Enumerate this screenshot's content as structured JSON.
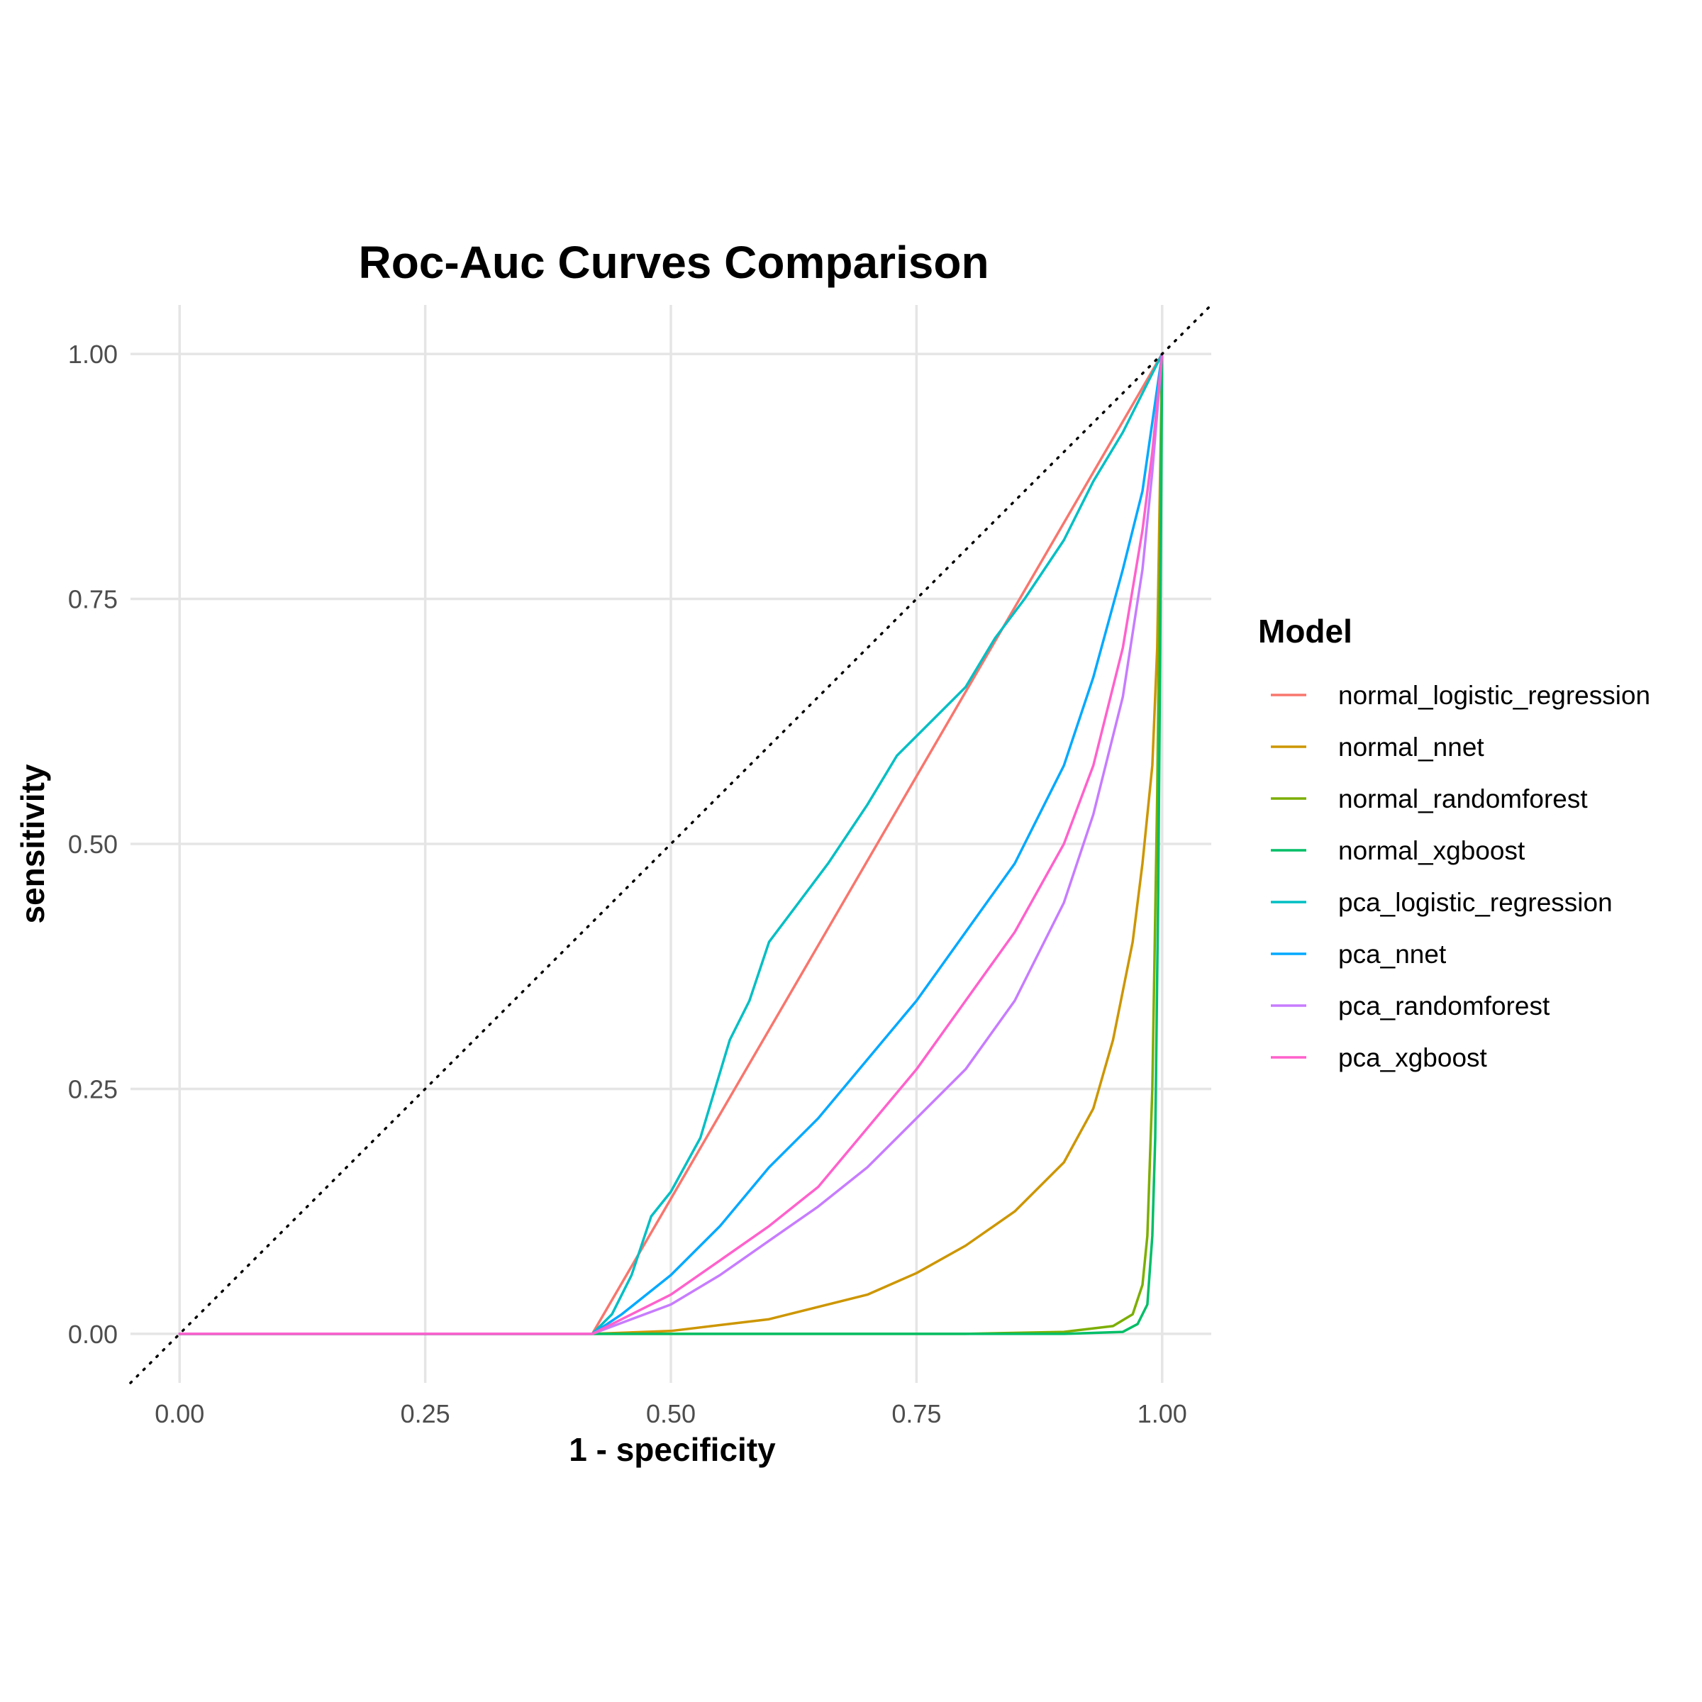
{
  "chart_data": {
    "type": "line",
    "title": "Roc-Auc Curves Comparison",
    "xlabel": "1 - specificity",
    "ylabel": "sensitivity",
    "xlim": [
      -0.05,
      1.05
    ],
    "ylim": [
      -0.05,
      1.05
    ],
    "x_ticks": [
      "0.00",
      "0.25",
      "0.50",
      "0.75",
      "1.00"
    ],
    "y_ticks": [
      "0.00",
      "0.25",
      "0.50",
      "0.75",
      "1.00"
    ],
    "grid": true,
    "reference_line": "diagonal dotted",
    "legend": {
      "title": "Model",
      "position": "right"
    },
    "series": [
      {
        "name": "normal_logistic_regression",
        "color": "#F8766D",
        "points": [
          [
            0,
            0
          ],
          [
            0.42,
            0
          ],
          [
            1.0,
            1.0
          ]
        ]
      },
      {
        "name": "normal_nnet",
        "color": "#CD9600",
        "points": [
          [
            0,
            0
          ],
          [
            0.42,
            0
          ],
          [
            0.5,
            0.003
          ],
          [
            0.6,
            0.015
          ],
          [
            0.7,
            0.04
          ],
          [
            0.75,
            0.062
          ],
          [
            0.8,
            0.09
          ],
          [
            0.85,
            0.125
          ],
          [
            0.9,
            0.175
          ],
          [
            0.93,
            0.23
          ],
          [
            0.95,
            0.3
          ],
          [
            0.97,
            0.4
          ],
          [
            0.98,
            0.48
          ],
          [
            0.99,
            0.58
          ],
          [
            0.995,
            0.7
          ],
          [
            1.0,
            1.0
          ]
        ]
      },
      {
        "name": "normal_randomforest",
        "color": "#7CAE00",
        "points": [
          [
            0,
            0
          ],
          [
            0.42,
            0
          ],
          [
            0.8,
            0.0
          ],
          [
            0.9,
            0.002
          ],
          [
            0.95,
            0.008
          ],
          [
            0.97,
            0.02
          ],
          [
            0.98,
            0.05
          ],
          [
            0.985,
            0.1
          ],
          [
            0.99,
            0.25
          ],
          [
            0.995,
            0.55
          ],
          [
            1.0,
            1.0
          ]
        ]
      },
      {
        "name": "normal_xgboost",
        "color": "#00BE67",
        "points": [
          [
            0,
            0
          ],
          [
            0.42,
            0
          ],
          [
            0.9,
            0.0
          ],
          [
            0.96,
            0.002
          ],
          [
            0.975,
            0.01
          ],
          [
            0.985,
            0.03
          ],
          [
            0.99,
            0.1
          ],
          [
            0.993,
            0.2
          ],
          [
            0.996,
            0.45
          ],
          [
            0.998,
            0.7
          ],
          [
            1.0,
            1.0
          ]
        ]
      },
      {
        "name": "pca_logistic_regression",
        "color": "#00BFC4",
        "points": [
          [
            0,
            0
          ],
          [
            0.42,
            0
          ],
          [
            0.44,
            0.02
          ],
          [
            0.46,
            0.06
          ],
          [
            0.48,
            0.12
          ],
          [
            0.5,
            0.145
          ],
          [
            0.53,
            0.2
          ],
          [
            0.56,
            0.3
          ],
          [
            0.58,
            0.34
          ],
          [
            0.6,
            0.4
          ],
          [
            0.63,
            0.44
          ],
          [
            0.66,
            0.48
          ],
          [
            0.7,
            0.54
          ],
          [
            0.73,
            0.59
          ],
          [
            0.75,
            0.61
          ],
          [
            0.8,
            0.66
          ],
          [
            0.83,
            0.71
          ],
          [
            0.86,
            0.75
          ],
          [
            0.9,
            0.81
          ],
          [
            0.93,
            0.87
          ],
          [
            0.96,
            0.92
          ],
          [
            1.0,
            1.0
          ]
        ]
      },
      {
        "name": "pca_nnet",
        "color": "#00A9FF",
        "points": [
          [
            0,
            0
          ],
          [
            0.42,
            0
          ],
          [
            0.45,
            0.02
          ],
          [
            0.5,
            0.06
          ],
          [
            0.55,
            0.11
          ],
          [
            0.6,
            0.17
          ],
          [
            0.65,
            0.22
          ],
          [
            0.7,
            0.28
          ],
          [
            0.75,
            0.34
          ],
          [
            0.8,
            0.41
          ],
          [
            0.85,
            0.48
          ],
          [
            0.9,
            0.58
          ],
          [
            0.93,
            0.67
          ],
          [
            0.96,
            0.78
          ],
          [
            0.98,
            0.86
          ],
          [
            1.0,
            1.0
          ]
        ]
      },
      {
        "name": "pca_randomforest",
        "color": "#C77CFF",
        "points": [
          [
            0,
            0
          ],
          [
            0.42,
            0
          ],
          [
            0.5,
            0.03
          ],
          [
            0.55,
            0.06
          ],
          [
            0.6,
            0.095
          ],
          [
            0.65,
            0.13
          ],
          [
            0.7,
            0.17
          ],
          [
            0.75,
            0.22
          ],
          [
            0.8,
            0.27
          ],
          [
            0.85,
            0.34
          ],
          [
            0.9,
            0.44
          ],
          [
            0.93,
            0.53
          ],
          [
            0.96,
            0.65
          ],
          [
            0.98,
            0.78
          ],
          [
            0.99,
            0.88
          ],
          [
            1.0,
            1.0
          ]
        ]
      },
      {
        "name": "pca_xgboost",
        "color": "#FF61CC",
        "points": [
          [
            0,
            0
          ],
          [
            0.42,
            0
          ],
          [
            0.5,
            0.04
          ],
          [
            0.55,
            0.075
          ],
          [
            0.6,
            0.11
          ],
          [
            0.65,
            0.15
          ],
          [
            0.7,
            0.21
          ],
          [
            0.75,
            0.27
          ],
          [
            0.8,
            0.34
          ],
          [
            0.85,
            0.41
          ],
          [
            0.9,
            0.5
          ],
          [
            0.93,
            0.58
          ],
          [
            0.96,
            0.7
          ],
          [
            0.98,
            0.82
          ],
          [
            0.99,
            0.9
          ],
          [
            1.0,
            1.0
          ]
        ]
      }
    ]
  }
}
